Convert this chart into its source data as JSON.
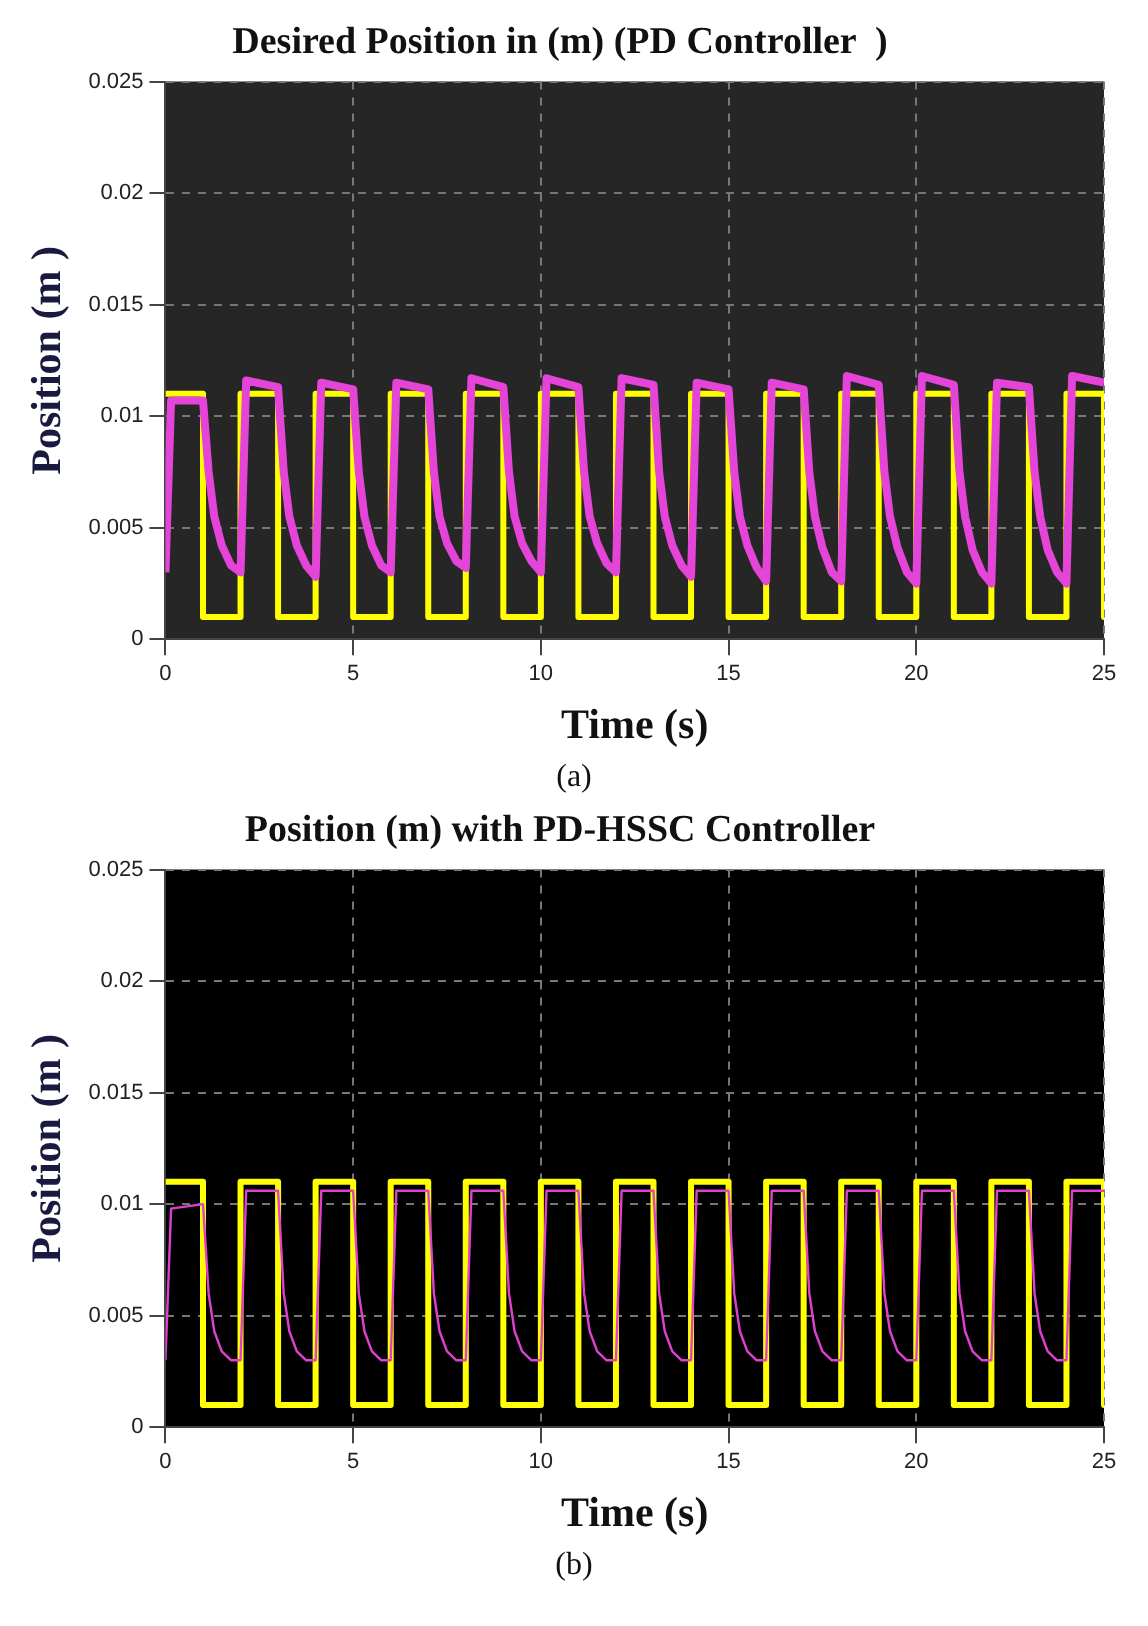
{
  "chart_data": [
    {
      "type": "line",
      "title": "Desired Position in (m) (PD Controller  )",
      "xlabel": "Time (s)",
      "ylabel": "Position (m )",
      "annotations": [
        "(a)"
      ],
      "xlim": [
        0,
        25
      ],
      "xticks": [
        0,
        5,
        10,
        15,
        20,
        25
      ],
      "ylim": [
        0,
        0.025
      ],
      "yticks": [
        0,
        0.005,
        0.01,
        0.015,
        0.02,
        0.025
      ],
      "grid": true,
      "legend": false,
      "marker": "none",
      "line_style": "solid",
      "series": [
        {
          "color": "#ffff00",
          "x": [
            0,
            1,
            1,
            2,
            2,
            3,
            3,
            4,
            4,
            5,
            5,
            6,
            6,
            7,
            7,
            8,
            8,
            9,
            9,
            10,
            10,
            11,
            11,
            12,
            12,
            13,
            13,
            14,
            14,
            15,
            15,
            16,
            16,
            17,
            17,
            18,
            18,
            19,
            19,
            20,
            20,
            21,
            21,
            22,
            22,
            23,
            23,
            24,
            24,
            25,
            25
          ],
          "values": [
            0.011,
            0.011,
            0.001,
            0.001,
            0.011,
            0.011,
            0.001,
            0.001,
            0.011,
            0.011,
            0.001,
            0.001,
            0.011,
            0.011,
            0.001,
            0.001,
            0.011,
            0.011,
            0.001,
            0.001,
            0.011,
            0.011,
            0.001,
            0.001,
            0.011,
            0.011,
            0.001,
            0.001,
            0.011,
            0.011,
            0.001,
            0.001,
            0.011,
            0.011,
            0.001,
            0.001,
            0.011,
            0.011,
            0.001,
            0.001,
            0.011,
            0.011,
            0.001,
            0.001,
            0.011,
            0.011,
            0.001,
            0.001,
            0.011,
            0.011,
            0.001
          ]
        },
        {
          "color": "#e444d8",
          "x": [
            0,
            0.15,
            1,
            1.15,
            1.3,
            1.5,
            1.75,
            2,
            2.15,
            3,
            3.15,
            3.3,
            3.5,
            3.75,
            4,
            4.15,
            5,
            5.15,
            5.3,
            5.5,
            5.75,
            6,
            6.15,
            7,
            7.15,
            7.3,
            7.5,
            7.75,
            8,
            8.15,
            9,
            9.15,
            9.3,
            9.5,
            9.75,
            10,
            10.15,
            11,
            11.15,
            11.3,
            11.5,
            11.75,
            12,
            12.15,
            13,
            13.15,
            13.3,
            13.5,
            13.75,
            14,
            14.15,
            15,
            15.15,
            15.3,
            15.5,
            15.75,
            16,
            16.15,
            17,
            17.15,
            17.3,
            17.5,
            17.75,
            18,
            18.15,
            19,
            19.15,
            19.3,
            19.5,
            19.75,
            20,
            20.15,
            21,
            21.15,
            21.3,
            21.5,
            21.75,
            22,
            22.15,
            23,
            23.15,
            23.3,
            23.5,
            23.75,
            24,
            24.15,
            25
          ],
          "values": [
            0.003,
            0.0107,
            0.0107,
            0.0075,
            0.0055,
            0.0042,
            0.0033,
            0.003,
            0.0116,
            0.0113,
            0.0075,
            0.0055,
            0.0042,
            0.0033,
            0.0028,
            0.0115,
            0.0112,
            0.0075,
            0.0055,
            0.0042,
            0.0033,
            0.003,
            0.0115,
            0.0112,
            0.0075,
            0.0055,
            0.0043,
            0.0035,
            0.0032,
            0.0117,
            0.0113,
            0.0075,
            0.0055,
            0.0043,
            0.0035,
            0.003,
            0.0117,
            0.0113,
            0.0075,
            0.0055,
            0.0043,
            0.0034,
            0.003,
            0.0117,
            0.0114,
            0.0075,
            0.0055,
            0.0042,
            0.0033,
            0.0028,
            0.0115,
            0.0112,
            0.0075,
            0.0055,
            0.0042,
            0.0032,
            0.0026,
            0.0115,
            0.0112,
            0.0075,
            0.0055,
            0.0041,
            0.003,
            0.0026,
            0.0118,
            0.0114,
            0.0075,
            0.0055,
            0.0041,
            0.003,
            0.0025,
            0.0118,
            0.0114,
            0.0075,
            0.0055,
            0.004,
            0.003,
            0.0025,
            0.0115,
            0.0113,
            0.0075,
            0.0055,
            0.004,
            0.003,
            0.0025,
            0.0118,
            0.0115
          ]
        }
      ]
    },
    {
      "type": "line",
      "title": "Position (m) with PD-HSSC Controller",
      "xlabel": "Time (s)",
      "ylabel": "Position (m )",
      "annotations": [
        "(b)"
      ],
      "xlim": [
        0,
        25
      ],
      "xticks": [
        0,
        5,
        10,
        15,
        20,
        25
      ],
      "ylim": [
        0,
        0.025
      ],
      "yticks": [
        0,
        0.005,
        0.01,
        0.015,
        0.02,
        0.025
      ],
      "grid": true,
      "legend": false,
      "marker": "none",
      "line_style": "solid",
      "series": [
        {
          "color": "#ffff00",
          "x": [
            0,
            1,
            1,
            2,
            2,
            3,
            3,
            4,
            4,
            5,
            5,
            6,
            6,
            7,
            7,
            8,
            8,
            9,
            9,
            10,
            10,
            11,
            11,
            12,
            12,
            13,
            13,
            14,
            14,
            15,
            15,
            16,
            16,
            17,
            17,
            18,
            18,
            19,
            19,
            20,
            20,
            21,
            21,
            22,
            22,
            23,
            23,
            24,
            24,
            25,
            25
          ],
          "values": [
            0.011,
            0.011,
            0.001,
            0.001,
            0.011,
            0.011,
            0.001,
            0.001,
            0.011,
            0.011,
            0.001,
            0.001,
            0.011,
            0.011,
            0.001,
            0.001,
            0.011,
            0.011,
            0.001,
            0.001,
            0.011,
            0.011,
            0.001,
            0.001,
            0.011,
            0.011,
            0.001,
            0.001,
            0.011,
            0.011,
            0.001,
            0.001,
            0.011,
            0.011,
            0.001,
            0.001,
            0.011,
            0.011,
            0.001,
            0.001,
            0.011,
            0.011,
            0.001,
            0.001,
            0.011,
            0.011,
            0.001,
            0.001,
            0.011,
            0.011,
            0.001
          ]
        },
        {
          "color": "#e040d0",
          "x": [
            0,
            0.15,
            1,
            1.15,
            1.3,
            1.5,
            1.75,
            2,
            2.15,
            3,
            3.15,
            3.3,
            3.5,
            3.75,
            4,
            4.15,
            5,
            5.15,
            5.3,
            5.5,
            5.75,
            6,
            6.15,
            7,
            7.15,
            7.3,
            7.5,
            7.75,
            8,
            8.15,
            9,
            9.15,
            9.3,
            9.5,
            9.75,
            10,
            10.15,
            11,
            11.15,
            11.3,
            11.5,
            11.75,
            12,
            12.15,
            13,
            13.15,
            13.3,
            13.5,
            13.75,
            14,
            14.15,
            15,
            15.15,
            15.3,
            15.5,
            15.75,
            16,
            16.15,
            17,
            17.15,
            17.3,
            17.5,
            17.75,
            18,
            18.15,
            19,
            19.15,
            19.3,
            19.5,
            19.75,
            20,
            20.15,
            21,
            21.15,
            21.3,
            21.5,
            21.75,
            22,
            22.15,
            23,
            23.15,
            23.3,
            23.5,
            23.75,
            24,
            24.15,
            25
          ],
          "values": [
            0.003,
            0.0098,
            0.01,
            0.006,
            0.0043,
            0.0034,
            0.003,
            0.003,
            0.0106,
            0.0106,
            0.006,
            0.0043,
            0.0034,
            0.003,
            0.003,
            0.0106,
            0.0106,
            0.006,
            0.0043,
            0.0034,
            0.003,
            0.003,
            0.0106,
            0.0106,
            0.006,
            0.0043,
            0.0034,
            0.003,
            0.003,
            0.0106,
            0.0106,
            0.006,
            0.0043,
            0.0034,
            0.003,
            0.003,
            0.0106,
            0.0106,
            0.006,
            0.0043,
            0.0034,
            0.003,
            0.003,
            0.0106,
            0.0106,
            0.006,
            0.0043,
            0.0034,
            0.003,
            0.003,
            0.0106,
            0.0106,
            0.006,
            0.0043,
            0.0034,
            0.003,
            0.003,
            0.0106,
            0.0106,
            0.006,
            0.0043,
            0.0034,
            0.003,
            0.003,
            0.0106,
            0.0106,
            0.006,
            0.0043,
            0.0034,
            0.003,
            0.003,
            0.0106,
            0.0106,
            0.006,
            0.0043,
            0.0034,
            0.003,
            0.003,
            0.0106,
            0.0106,
            0.006,
            0.0043,
            0.0034,
            0.003,
            0.003,
            0.0106,
            0.0106
          ]
        }
      ]
    }
  ]
}
